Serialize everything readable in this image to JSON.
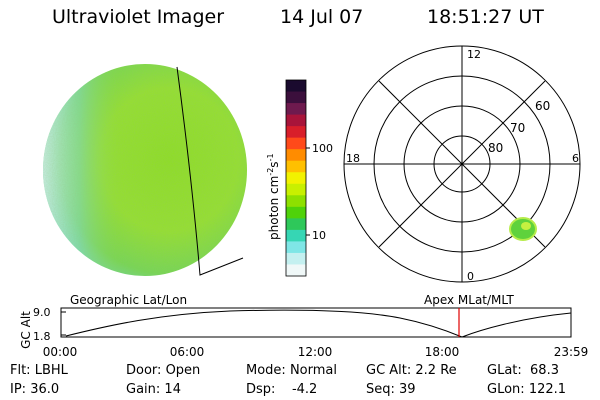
{
  "header": {
    "title": "Ultraviolet Imager",
    "date": "14 Jul 07",
    "time": "18:51:27 UT"
  },
  "colorbar": {
    "unit_label": "photon cm",
    "unit_exp1": "-2",
    "unit_mid": "s",
    "unit_exp2": "-1",
    "ticks": [
      "100",
      "10"
    ],
    "colors": [
      "#1a0a2e",
      "#3b0f3c",
      "#6e1a4e",
      "#a8143a",
      "#d81e2a",
      "#ff4a1a",
      "#ff8c00",
      "#ffc000",
      "#f2f200",
      "#c8f000",
      "#8ee000",
      "#4fd20a",
      "#2ec85a",
      "#36d6b4",
      "#7fe6e6",
      "#c4f0f0",
      "#f0f8f8"
    ]
  },
  "polar": {
    "labels_mlt": [
      "12",
      "18",
      "6",
      "0"
    ],
    "labels_mlat": [
      "60",
      "70",
      "80"
    ]
  },
  "timeline": {
    "left_title": "Geographic Lat/Lon",
    "right_title": "Apex  MLat/MLT",
    "y_label": "GC Alt",
    "y_ticks": [
      "9.0",
      "1.8"
    ],
    "x_ticks": [
      "00:00",
      "06:00",
      "12:00",
      "18:00",
      "23:59"
    ],
    "marker_time": "18:51:27"
  },
  "metadata": {
    "flt_label": "Flt:",
    "flt_value": "LBHL",
    "ip_label": "IP:",
    "ip_value": "36.0",
    "door_label": "Door:",
    "door_value": "Open",
    "gain_label": "Gain:",
    "gain_value": "14",
    "mode_label": "Mode:",
    "mode_value": "Normal",
    "dsp_label": "Dsp:",
    "dsp_value": "-4.2",
    "gcalt_label": "GC Alt:",
    "gcalt_value": "2.2 Re",
    "seq_label": "Seq:",
    "seq_value": "39",
    "glat_label": "GLat:",
    "glat_value": "68.3",
    "glon_label": "GLon:",
    "glon_value": "122.1"
  },
  "colors": {
    "marker": "#e00000",
    "globe_main": "#8fe22c",
    "globe_pale": "#c8eeee",
    "spot": "#5fd23c"
  }
}
